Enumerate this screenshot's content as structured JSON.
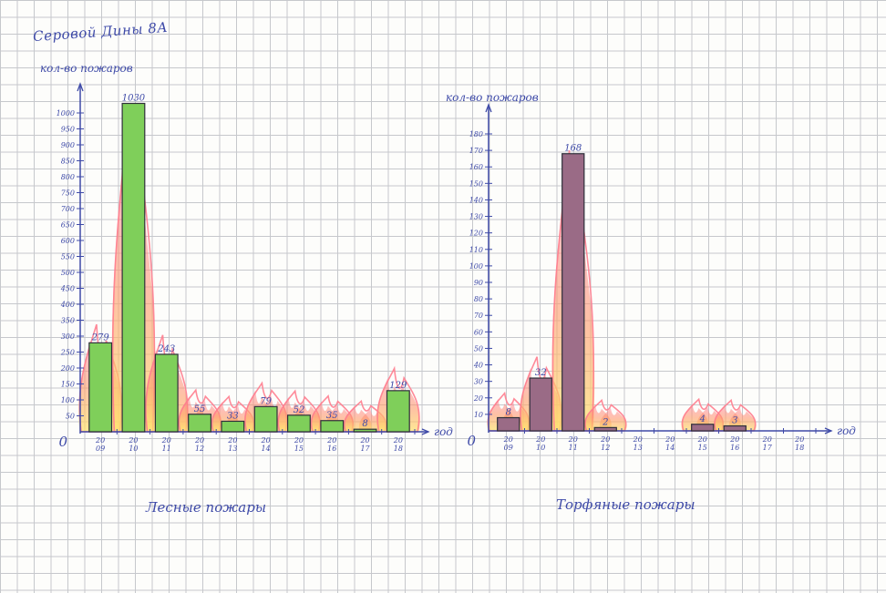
{
  "author": "Серовой Дины 8А",
  "charts": [
    {
      "type": "bar",
      "ylabel": "кол-во пожаров",
      "xlabel": "год",
      "caption": "Лесные пожары",
      "categories": [
        "2009",
        "2010",
        "2011",
        "2012",
        "2013",
        "2014",
        "2015",
        "2016",
        "2017",
        "2018"
      ],
      "values": [
        279,
        1030,
        243,
        55,
        33,
        79,
        52,
        35,
        8,
        129
      ],
      "y_ticks": [
        0,
        50,
        100,
        150,
        200,
        250,
        300,
        350,
        400,
        450,
        500,
        550,
        600,
        650,
        700,
        750,
        800,
        850,
        900,
        950,
        1000
      ],
      "ylim": [
        0,
        1000
      ],
      "bar_color": "#7fcf5a",
      "flames": true
    },
    {
      "type": "bar",
      "ylabel": "кол-во пожаров",
      "xlabel": "год",
      "caption": "Торфяные пожары",
      "categories": [
        "2009",
        "2010",
        "2011",
        "2012",
        "2013",
        "2014",
        "2015",
        "2016",
        "2017",
        "2018"
      ],
      "values": [
        8,
        32,
        168,
        2,
        0,
        0,
        4,
        3,
        0,
        0
      ],
      "y_ticks": [
        0,
        10,
        20,
        30,
        40,
        50,
        60,
        70,
        80,
        90,
        100,
        110,
        120,
        130,
        140,
        150,
        160,
        170,
        180
      ],
      "ylim": [
        0,
        180
      ],
      "bar_color": "#9a6b86",
      "flames": true
    }
  ]
}
